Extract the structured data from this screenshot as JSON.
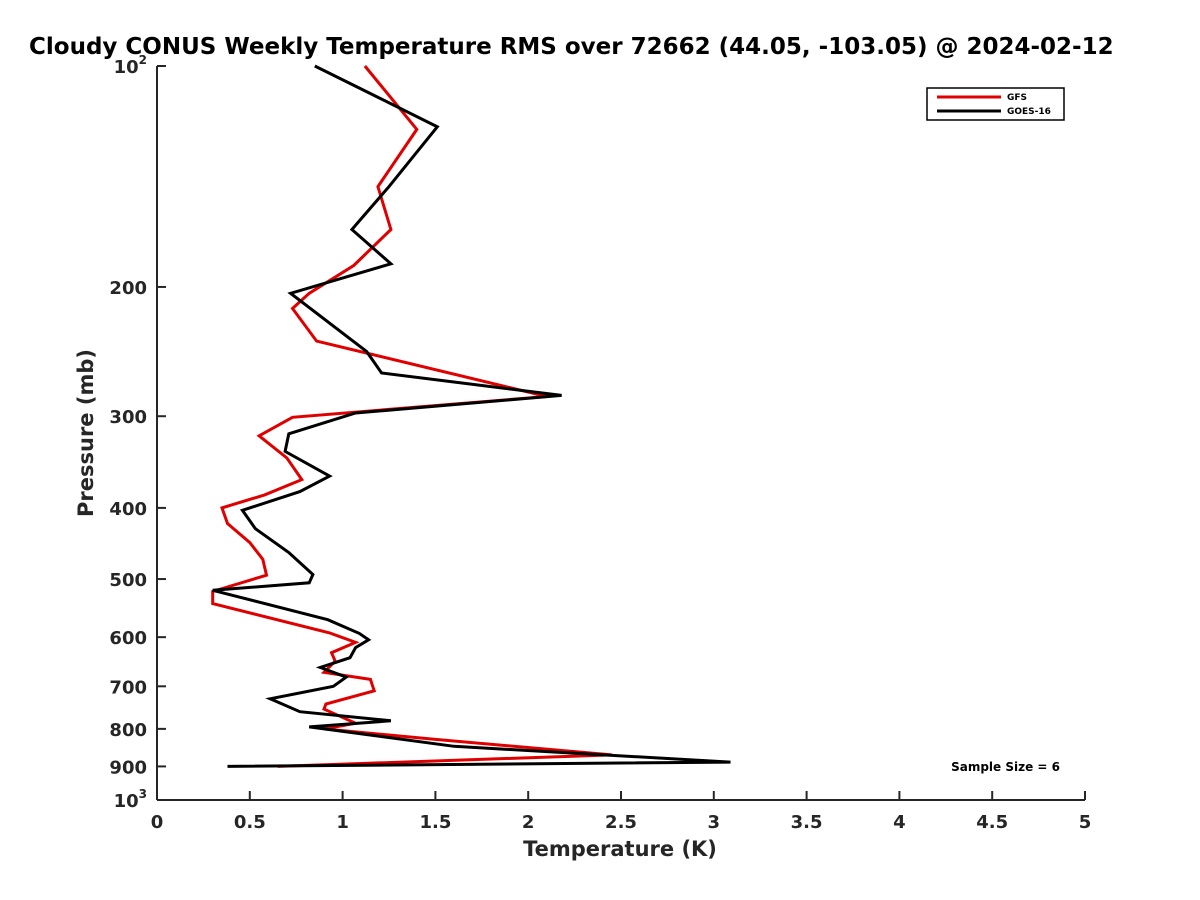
{
  "chart_data": {
    "type": "line",
    "title": "Cloudy CONUS Weekly Temperature RMS over 72662 (44.05, -103.05) @ 2024-02-12",
    "xlabel": "Temperature (K)",
    "ylabel": "Pressure (mb)",
    "xlim": [
      0,
      5
    ],
    "ylim": [
      100,
      1000
    ],
    "y_scale": "log",
    "y_reversed": true,
    "x_ticks": [
      {
        "value": 0,
        "label": "0"
      },
      {
        "value": 0.5,
        "label": "0.5"
      },
      {
        "value": 1,
        "label": "1"
      },
      {
        "value": 1.5,
        "label": "1.5"
      },
      {
        "value": 2,
        "label": "2"
      },
      {
        "value": 2.5,
        "label": "2.5"
      },
      {
        "value": 3,
        "label": "3"
      },
      {
        "value": 3.5,
        "label": "3.5"
      },
      {
        "value": 4,
        "label": "4"
      },
      {
        "value": 4.5,
        "label": "4.5"
      },
      {
        "value": 5,
        "label": "5"
      }
    ],
    "y_ticks": [
      {
        "value": 100,
        "base": "10",
        "exp": "2"
      },
      {
        "value": 200,
        "label": "200"
      },
      {
        "value": 300,
        "label": "300"
      },
      {
        "value": 400,
        "label": "400"
      },
      {
        "value": 500,
        "label": "500"
      },
      {
        "value": 600,
        "label": "600"
      },
      {
        "value": 700,
        "label": "700"
      },
      {
        "value": 800,
        "label": "800"
      },
      {
        "value": 900,
        "label": "900"
      },
      {
        "value": 1000,
        "base": "10",
        "exp": "3"
      }
    ],
    "grid": false,
    "legend_position": "top-right",
    "annotation": "Sample Size = 6",
    "series": [
      {
        "name": "GFS",
        "color": "#e00000",
        "points": [
          [
            1.12,
            100
          ],
          [
            1.4,
            122
          ],
          [
            1.19,
            146
          ],
          [
            1.26,
            167
          ],
          [
            1.06,
            187
          ],
          [
            0.82,
            204
          ],
          [
            0.73,
            214
          ],
          [
            0.86,
            237
          ],
          [
            2.1,
            282
          ],
          [
            0.73,
            301
          ],
          [
            0.55,
            319
          ],
          [
            0.7,
            342
          ],
          [
            0.78,
            366
          ],
          [
            0.58,
            384
          ],
          [
            0.35,
            400
          ],
          [
            0.38,
            420
          ],
          [
            0.5,
            446
          ],
          [
            0.57,
            470
          ],
          [
            0.59,
            494
          ],
          [
            0.3,
            520
          ],
          [
            0.3,
            540
          ],
          [
            0.93,
            592
          ],
          [
            1.07,
            610
          ],
          [
            0.94,
            630
          ],
          [
            0.96,
            647
          ],
          [
            0.9,
            670
          ],
          [
            1.15,
            685
          ],
          [
            1.17,
            710
          ],
          [
            0.91,
            740
          ],
          [
            0.9,
            752
          ],
          [
            1.07,
            786
          ],
          [
            0.9,
            800
          ],
          [
            1.5,
            827
          ],
          [
            2.45,
            868
          ],
          [
            0.65,
            900
          ]
        ]
      },
      {
        "name": "GOES-16",
        "color": "#000000",
        "points": [
          [
            0.85,
            100
          ],
          [
            1.51,
            121
          ],
          [
            1.25,
            146
          ],
          [
            1.05,
            167
          ],
          [
            1.26,
            186
          ],
          [
            0.72,
            204
          ],
          [
            1.13,
            245
          ],
          [
            1.21,
            262
          ],
          [
            2.18,
            281
          ],
          [
            1.07,
            297
          ],
          [
            0.71,
            317
          ],
          [
            0.69,
            335
          ],
          [
            0.93,
            362
          ],
          [
            0.77,
            380
          ],
          [
            0.46,
            403
          ],
          [
            0.53,
            427
          ],
          [
            0.71,
            460
          ],
          [
            0.84,
            493
          ],
          [
            0.82,
            506
          ],
          [
            0.3,
            518
          ],
          [
            0.92,
            568
          ],
          [
            1.09,
            593
          ],
          [
            1.14,
            605
          ],
          [
            1.07,
            620
          ],
          [
            1.04,
            640
          ],
          [
            0.88,
            660
          ],
          [
            1.02,
            680
          ],
          [
            0.95,
            700
          ],
          [
            0.61,
            728
          ],
          [
            0.77,
            758
          ],
          [
            1.26,
            780
          ],
          [
            0.82,
            795
          ],
          [
            1.6,
            845
          ],
          [
            3.09,
            888
          ],
          [
            0.38,
            900
          ]
        ]
      }
    ]
  }
}
